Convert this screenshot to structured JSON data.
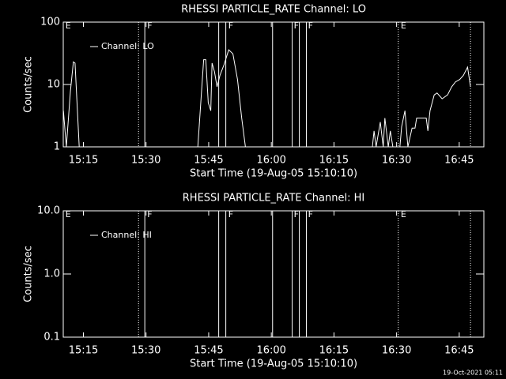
{
  "chart_data": [
    {
      "type": "line",
      "title": "RHESSI PARTICLE_RATE Channel: LO",
      "xlabel": "Start Time (19-Aug-05 15:10:10)",
      "ylabel": "Counts/sec",
      "log_y": true,
      "ylim": [
        1,
        100
      ],
      "yticks": [
        1,
        10,
        100
      ],
      "xlim": [
        910.17,
        1010.9
      ],
      "xticks": [
        {
          "value": 915,
          "label": "15:15"
        },
        {
          "value": 930,
          "label": "15:30"
        },
        {
          "value": 945,
          "label": "15:45"
        },
        {
          "value": 960,
          "label": "16:00"
        },
        {
          "value": 975,
          "label": "16:15"
        },
        {
          "value": 990,
          "label": "16:30"
        },
        {
          "value": 1005,
          "label": "16:45"
        }
      ],
      "legend": "upper left",
      "series": [
        {
          "name": "Channel: LO",
          "color": "#ffffff",
          "x": [
            910.2,
            910.9,
            911.9,
            912.6,
            913.0,
            914.0,
            930,
            942.4,
            943.8,
            944.3,
            944.9,
            945.5,
            945.8,
            946.4,
            947.0,
            947.7,
            948.7,
            949.8,
            950.8,
            951.9,
            952.9,
            953.8,
            980,
            984.2,
            984.6,
            985.1,
            986.1,
            986.8,
            987.2,
            988.0,
            988.5,
            989.1,
            990,
            990.8,
            991.2,
            992.0,
            992.7,
            993.7,
            994.4,
            994.8,
            997.1,
            997.5,
            998.0,
            999.0,
            999.7,
            1000.9,
            1002.2,
            1003.2,
            1004.1,
            1005.1,
            1006.0,
            1007.0,
            1007.7
          ],
          "values": [
            3.8,
            1,
            7.9,
            23,
            22,
            1,
            null,
            1,
            25,
            25,
            5.1,
            3.8,
            22,
            16,
            9.2,
            14,
            21,
            36,
            31,
            12,
            2.9,
            1,
            null,
            1,
            1.8,
            1,
            2.5,
            1,
            2.9,
            1,
            1.8,
            1,
            null,
            1,
            2.1,
            3.8,
            1,
            2.0,
            2.0,
            2.9,
            2.9,
            1.8,
            3.8,
            6.8,
            7.3,
            5.9,
            6.8,
            9.2,
            11,
            12,
            14,
            19,
            9.2
          ]
        }
      ],
      "vlines": [
        {
          "x": 928.2,
          "style": "dotted"
        },
        {
          "x": 929.7,
          "style": "solid"
        },
        {
          "x": 947.4,
          "style": "solid"
        },
        {
          "x": 949.1,
          "style": "solid"
        },
        {
          "x": 960.3,
          "style": "solid"
        },
        {
          "x": 965.0,
          "style": "solid"
        },
        {
          "x": 966.7,
          "style": "solid"
        },
        {
          "x": 968.4,
          "style": "solid"
        },
        {
          "x": 990.4,
          "style": "dotted"
        },
        {
          "x": 1007.7,
          "style": "dotted"
        }
      ],
      "flags": [
        {
          "x": 910.5,
          "label": "E"
        },
        {
          "x": 930.1,
          "label": "F"
        },
        {
          "x": 949.5,
          "label": "F"
        },
        {
          "x": 965.2,
          "label": "F"
        },
        {
          "x": 968.6,
          "label": "F"
        },
        {
          "x": 990.8,
          "label": "E"
        }
      ]
    },
    {
      "type": "line",
      "title": "RHESSI PARTICLE_RATE Channel: HI",
      "xlabel": "Start Time (19-Aug-05 15:10:10)",
      "ylabel": "Counts/sec",
      "log_y": true,
      "ylim": [
        0.1,
        10
      ],
      "yticks": [
        0.1,
        {
          "value": 1,
          "label": "1.0"
        },
        {
          "value": 10,
          "label": "10.0"
        }
      ],
      "xlim": [
        910.17,
        1010.9
      ],
      "xticks": [
        {
          "value": 915,
          "label": "15:15"
        },
        {
          "value": 930,
          "label": "15:30"
        },
        {
          "value": 945,
          "label": "15:45"
        },
        {
          "value": 960,
          "label": "16:00"
        },
        {
          "value": 975,
          "label": "16:15"
        },
        {
          "value": 990,
          "label": "16:30"
        },
        {
          "value": 1005,
          "label": "16:45"
        }
      ],
      "legend": "upper left",
      "series": [
        {
          "name": "Channel: HI",
          "color": "#ffffff",
          "x": [],
          "values": []
        }
      ],
      "vlines": [
        {
          "x": 928.2,
          "style": "dotted"
        },
        {
          "x": 929.7,
          "style": "solid"
        },
        {
          "x": 947.4,
          "style": "solid"
        },
        {
          "x": 949.1,
          "style": "solid"
        },
        {
          "x": 960.3,
          "style": "solid"
        },
        {
          "x": 965.0,
          "style": "solid"
        },
        {
          "x": 966.7,
          "style": "solid"
        },
        {
          "x": 968.4,
          "style": "solid"
        },
        {
          "x": 990.4,
          "style": "dotted"
        },
        {
          "x": 1007.7,
          "style": "dotted"
        }
      ],
      "flags": [
        {
          "x": 910.5,
          "label": "E"
        },
        {
          "x": 930.1,
          "label": "F"
        },
        {
          "x": 949.5,
          "label": "F"
        },
        {
          "x": 965.2,
          "label": "F"
        },
        {
          "x": 968.6,
          "label": "F"
        },
        {
          "x": 990.8,
          "label": "E"
        }
      ]
    }
  ],
  "footer": "19-Oct-2021 05:11"
}
